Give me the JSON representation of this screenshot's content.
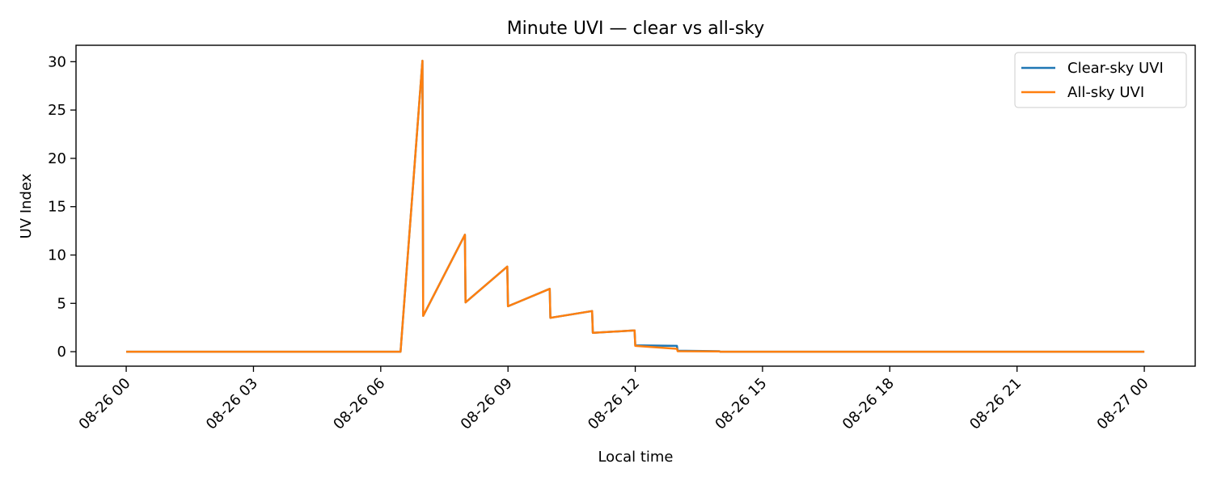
{
  "chart_data": {
    "type": "line",
    "title": "Minute UVI — clear vs all-sky",
    "xlabel": "Local time",
    "ylabel": "UV Index",
    "x_axis": {
      "type": "time",
      "range": [
        "2025-08-25 22:49",
        "2025-08-27 01:12"
      ],
      "ticks": [
        "2025-08-26 00:00",
        "2025-08-26 03:00",
        "2025-08-26 06:00",
        "2025-08-26 09:00",
        "2025-08-26 12:00",
        "2025-08-26 15:00",
        "2025-08-26 18:00",
        "2025-08-26 21:00",
        "2025-08-27 00:00"
      ],
      "tick_labels": [
        "08-26 00",
        "08-26 03",
        "08-26 06",
        "08-26 09",
        "08-26 12",
        "08-26 15",
        "08-26 18",
        "08-26 21",
        "08-27 00"
      ]
    },
    "y_axis": {
      "range": [
        -1.5,
        31.7
      ],
      "ticks": [
        0,
        5,
        10,
        15,
        20,
        25,
        30
      ],
      "tick_labels": [
        "0",
        "5",
        "10",
        "15",
        "20",
        "25",
        "30"
      ]
    },
    "grid": false,
    "legend_position": "top-right",
    "series": [
      {
        "name": "Clear-sky UVI",
        "color": "#1f77b4",
        "points": [
          [
            "2025-08-26 00:00",
            0
          ],
          [
            "2025-08-26 06:28",
            0
          ],
          [
            "2025-08-26 06:59",
            30.1
          ],
          [
            "2025-08-26 07:00",
            3.7
          ],
          [
            "2025-08-26 07:59",
            12.1
          ],
          [
            "2025-08-26 08:00",
            5.1
          ],
          [
            "2025-08-26 08:59",
            8.8
          ],
          [
            "2025-08-26 09:00",
            4.7
          ],
          [
            "2025-08-26 09:59",
            6.5
          ],
          [
            "2025-08-26 10:00",
            3.5
          ],
          [
            "2025-08-26 10:59",
            4.2
          ],
          [
            "2025-08-26 11:00",
            1.95
          ],
          [
            "2025-08-26 11:59",
            2.2
          ],
          [
            "2025-08-26 12:00",
            0.65
          ],
          [
            "2025-08-26 12:59",
            0.6
          ],
          [
            "2025-08-26 13:00",
            0.1
          ],
          [
            "2025-08-26 13:59",
            0.05
          ],
          [
            "2025-08-26 14:00",
            0
          ],
          [
            "2025-08-27 00:00",
            0
          ]
        ]
      },
      {
        "name": "All-sky UVI",
        "color": "#ff7f0e",
        "points": [
          [
            "2025-08-26 00:00",
            0
          ],
          [
            "2025-08-26 06:28",
            0
          ],
          [
            "2025-08-26 06:59",
            30.1
          ],
          [
            "2025-08-26 07:00",
            3.7
          ],
          [
            "2025-08-26 07:59",
            12.1
          ],
          [
            "2025-08-26 08:00",
            5.1
          ],
          [
            "2025-08-26 08:59",
            8.8
          ],
          [
            "2025-08-26 09:00",
            4.7
          ],
          [
            "2025-08-26 09:59",
            6.5
          ],
          [
            "2025-08-26 10:00",
            3.5
          ],
          [
            "2025-08-26 10:59",
            4.2
          ],
          [
            "2025-08-26 11:00",
            1.95
          ],
          [
            "2025-08-26 11:59",
            2.2
          ],
          [
            "2025-08-26 12:00",
            0.6
          ],
          [
            "2025-08-26 12:59",
            0.3
          ],
          [
            "2025-08-26 13:00",
            0.05
          ],
          [
            "2025-08-26 13:59",
            0.02
          ],
          [
            "2025-08-26 14:00",
            0
          ],
          [
            "2025-08-27 00:00",
            0
          ]
        ]
      }
    ]
  }
}
